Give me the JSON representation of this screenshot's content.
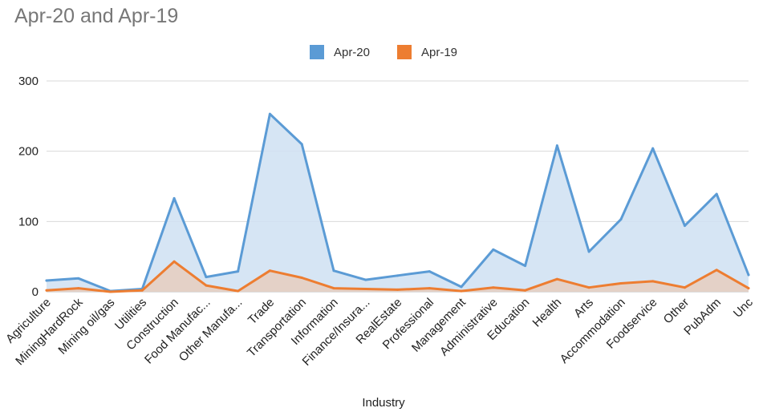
{
  "title": "Apr-20 and Apr-19",
  "chart_data": {
    "type": "area",
    "title": "Apr-20 and Apr-19",
    "xlabel": "Industry",
    "ylabel": "",
    "ylim": [
      0,
      300
    ],
    "yticks": [
      0,
      100,
      200,
      300
    ],
    "grid": true,
    "legend_position": "top",
    "categories": [
      "Agriculture",
      "MiningHardRock",
      "Mining oil/gas",
      "Utilities",
      "Construction",
      "Food Manufac...",
      "Other Manufa...",
      "Trade",
      "Transportation",
      "Information",
      "Finance/Insura...",
      "RealEstate",
      "Professional",
      "Management",
      "Administrative",
      "Education",
      "Health",
      "Arts",
      "Accommodation",
      "Foodservice",
      "Other",
      "PubAdm",
      "Unc"
    ],
    "series": [
      {
        "name": "Apr-20",
        "color": "#5b9bd5",
        "fill": "#cfe0f2",
        "values": [
          16,
          19,
          1,
          4,
          133,
          21,
          29,
          253,
          210,
          30,
          17,
          23,
          29,
          7,
          60,
          37,
          208,
          57,
          103,
          204,
          94,
          139,
          24
        ]
      },
      {
        "name": "Apr-19",
        "color": "#ed7d31",
        "fill": "#e8c9b8",
        "values": [
          2,
          5,
          0,
          2,
          43,
          9,
          1,
          30,
          20,
          5,
          4,
          3,
          5,
          1,
          6,
          2,
          18,
          6,
          12,
          15,
          6,
          31,
          5
        ]
      }
    ]
  }
}
